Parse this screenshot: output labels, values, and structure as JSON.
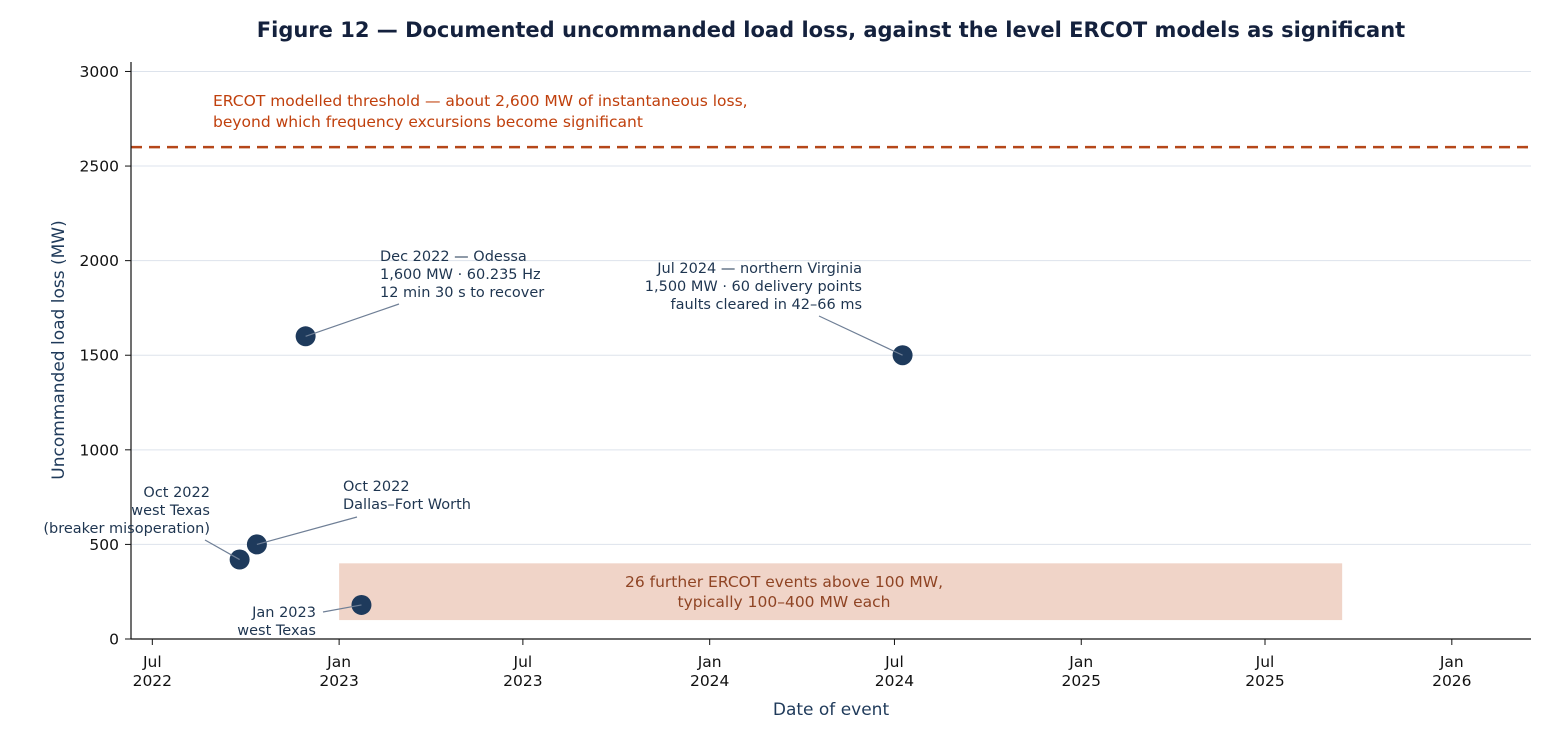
{
  "chart_data": {
    "type": "scatter",
    "title": "Figure 12 — Documented uncommanded load loss, against the level ERCOT models as significant",
    "xlabel": "Date of event",
    "ylabel": "Uncommanded load loss (MW)",
    "xlim": [
      "2022-06-10",
      "2026-03-20"
    ],
    "ylim": [
      0,
      3050
    ],
    "yticks": [
      0,
      500,
      1000,
      1500,
      2000,
      2500,
      3000
    ],
    "xticks": [
      {
        "date": "2022-07-01",
        "month": "Jul",
        "year": "2022"
      },
      {
        "date": "2023-01-01",
        "month": "Jan",
        "year": "2023"
      },
      {
        "date": "2023-07-01",
        "month": "Jul",
        "year": "2023"
      },
      {
        "date": "2024-01-01",
        "month": "Jan",
        "year": "2024"
      },
      {
        "date": "2024-07-01",
        "month": "Jul",
        "year": "2024"
      },
      {
        "date": "2025-01-01",
        "month": "Jan",
        "year": "2025"
      },
      {
        "date": "2025-07-01",
        "month": "Jul",
        "year": "2025"
      },
      {
        "date": "2026-01-01",
        "month": "Jan",
        "year": "2026"
      }
    ],
    "grid": "horizontal",
    "threshold": {
      "value": 2600,
      "color": "#b5471a",
      "label_lines": [
        "ERCOT modelled threshold — about 2,600 MW of instantaneous loss,",
        "beyond which frequency excursions become significant"
      ]
    },
    "band": {
      "x_start": "2023-01-01",
      "x_end": "2025-09-15",
      "y_start": 100,
      "y_end": 400,
      "color": "#f0d4c8",
      "label_lines": [
        "26 further ERCOT events above 100 MW,",
        "typically 100–400 MW each"
      ]
    },
    "point_color": "#1e3a5c",
    "points": [
      {
        "date": "2022-09-25",
        "value": 420,
        "label_lines": [
          "Oct 2022",
          "west Texas",
          "(breaker misoperation)"
        ]
      },
      {
        "date": "2022-10-12",
        "value": 500,
        "label_lines": [
          "Oct 2022",
          "Dallas–Fort Worth"
        ]
      },
      {
        "date": "2022-11-29",
        "value": 1600,
        "label_lines": [
          "Dec 2022 — Odessa",
          "1,600 MW · 60.235 Hz",
          "12 min 30 s to recover"
        ]
      },
      {
        "date": "2023-01-23",
        "value": 180,
        "label_lines": [
          "Jan 2023",
          "west Texas"
        ]
      },
      {
        "date": "2024-07-09",
        "value": 1500,
        "label_lines": [
          "Jul 2024 — northern Virginia",
          "1,500 MW · 60 delivery points",
          "faults cleared in 42–66 ms"
        ]
      }
    ]
  }
}
